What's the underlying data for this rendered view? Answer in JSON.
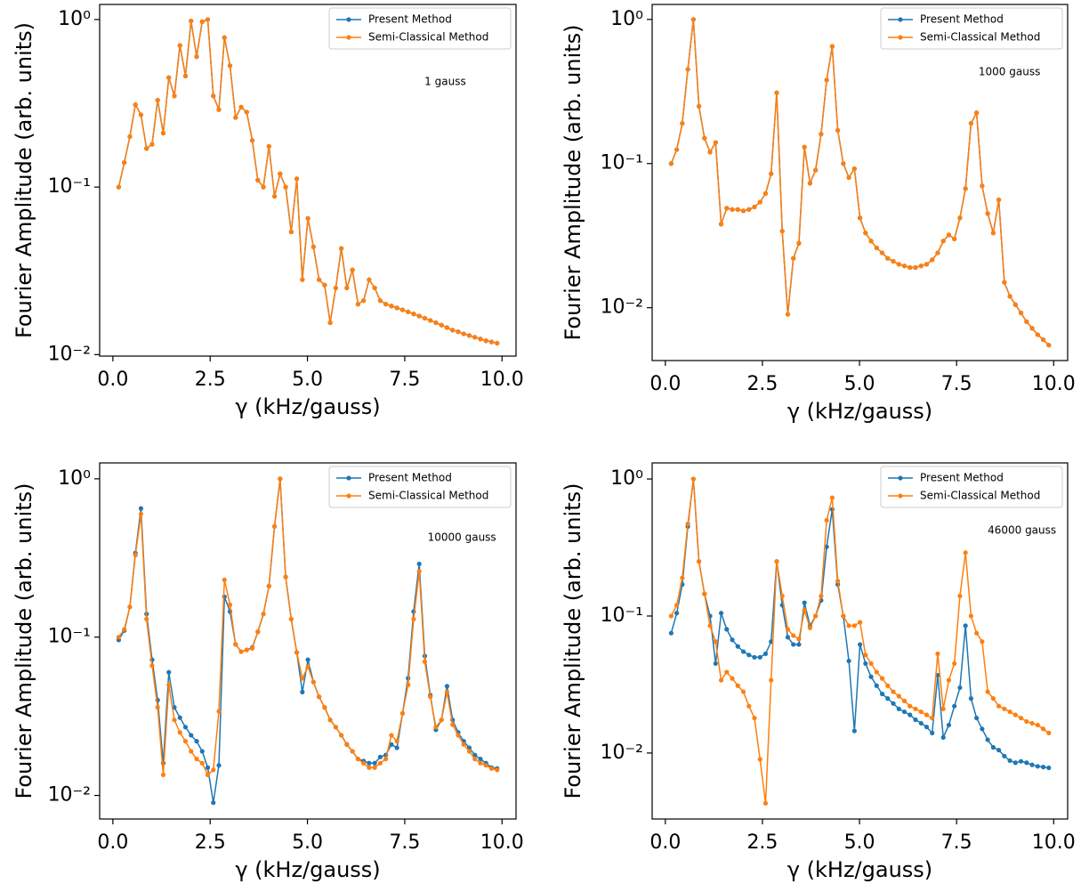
{
  "chart_data": [
    {
      "type": "line",
      "yscale": "log",
      "legend": "upper right",
      "annotation": "1 gauss",
      "xlabel": "γ (kHz/gauss)",
      "ylabel": "Fourier Amplitude (arb. units)",
      "xlim": [
        -0.34,
        10.36
      ],
      "ylim": [
        0.0098,
        1.23
      ],
      "xticks": [
        {
          "value": 0,
          "label": "0.0"
        },
        2.5,
        {
          "value": 5,
          "label": "5.0"
        },
        7.5,
        {
          "value": 10,
          "label": "10.0"
        }
      ],
      "yticks": [
        {
          "value": 0.01,
          "label": "10⁻²"
        },
        {
          "value": 0.1,
          "label": "10⁻¹"
        },
        {
          "value": 1,
          "label": "10⁰"
        }
      ],
      "x": [
        0.15,
        0.293,
        0.436,
        0.579,
        0.722,
        0.865,
        1.008,
        1.151,
        1.294,
        1.437,
        1.58,
        1.723,
        1.866,
        2.009,
        2.152,
        2.295,
        2.438,
        2.581,
        2.724,
        2.867,
        3.01,
        3.153,
        3.296,
        3.439,
        3.582,
        3.725,
        3.868,
        4.011,
        4.154,
        4.297,
        4.44,
        4.583,
        4.726,
        4.869,
        5.012,
        5.155,
        5.298,
        5.441,
        5.584,
        5.727,
        5.87,
        6.013,
        6.156,
        6.299,
        6.442,
        6.585,
        6.728,
        6.871,
        7.014,
        7.157,
        7.3,
        7.443,
        7.586,
        7.729,
        7.872,
        8.015,
        8.158,
        8.301,
        8.444,
        8.587,
        8.73,
        8.873,
        9.016,
        9.159,
        9.302,
        9.445,
        9.588,
        9.731,
        9.874
      ],
      "series": [
        {
          "name": "Present Method",
          "color": "#1f77b4",
          "values": [
            0.1,
            0.14,
            0.2,
            0.31,
            0.27,
            0.17,
            0.18,
            0.33,
            0.21,
            0.45,
            0.35,
            0.7,
            0.46,
            0.98,
            0.6,
            0.97,
            1.0,
            0.35,
            0.29,
            0.78,
            0.53,
            0.26,
            0.3,
            0.28,
            0.19,
            0.11,
            0.1,
            0.175,
            0.088,
            0.12,
            0.1,
            0.054,
            0.112,
            0.028,
            0.065,
            0.044,
            0.028,
            0.026,
            0.0155,
            0.025,
            0.043,
            0.025,
            0.032,
            0.02,
            0.021,
            0.028,
            0.025,
            0.021,
            0.02,
            0.0195,
            0.019,
            0.0185,
            0.018,
            0.0175,
            0.017,
            0.0165,
            0.016,
            0.0155,
            0.015,
            0.0145,
            0.014,
            0.0137,
            0.0133,
            0.013,
            0.0127,
            0.0124,
            0.0121,
            0.0119,
            0.0117
          ]
        },
        {
          "name": "Semi-Classical Method",
          "color": "#ff7f0e",
          "values": [
            0.1,
            0.14,
            0.2,
            0.31,
            0.27,
            0.17,
            0.18,
            0.33,
            0.21,
            0.45,
            0.35,
            0.7,
            0.46,
            0.98,
            0.6,
            0.97,
            1.0,
            0.35,
            0.29,
            0.78,
            0.53,
            0.26,
            0.3,
            0.28,
            0.19,
            0.11,
            0.1,
            0.175,
            0.088,
            0.12,
            0.1,
            0.054,
            0.112,
            0.028,
            0.065,
            0.044,
            0.028,
            0.026,
            0.0155,
            0.025,
            0.043,
            0.025,
            0.032,
            0.02,
            0.021,
            0.028,
            0.025,
            0.021,
            0.02,
            0.0195,
            0.019,
            0.0185,
            0.018,
            0.0175,
            0.017,
            0.0165,
            0.016,
            0.0155,
            0.015,
            0.0145,
            0.014,
            0.0137,
            0.0133,
            0.013,
            0.0127,
            0.0124,
            0.0121,
            0.0119,
            0.0117
          ]
        }
      ]
    },
    {
      "type": "line",
      "yscale": "log",
      "legend": "upper right",
      "annotation": "1000 gauss",
      "xlabel": "γ (kHz/gauss)",
      "ylabel": "Fourier Amplitude (arb. units)",
      "xlim": [
        -0.34,
        10.36
      ],
      "ylim": [
        0.0043,
        1.27
      ],
      "xticks": [
        {
          "value": 0,
          "label": "0.0"
        },
        2.5,
        {
          "value": 5,
          "label": "5.0"
        },
        7.5,
        {
          "value": 10,
          "label": "10.0"
        }
      ],
      "yticks": [
        {
          "value": 0.01,
          "label": "10⁻²"
        },
        {
          "value": 0.1,
          "label": "10⁻¹"
        },
        {
          "value": 1,
          "label": "10⁰"
        }
      ],
      "x": [
        0.15,
        0.293,
        0.436,
        0.579,
        0.722,
        0.865,
        1.008,
        1.151,
        1.294,
        1.437,
        1.58,
        1.723,
        1.866,
        2.009,
        2.152,
        2.295,
        2.438,
        2.581,
        2.724,
        2.867,
        3.01,
        3.153,
        3.296,
        3.439,
        3.582,
        3.725,
        3.868,
        4.011,
        4.154,
        4.297,
        4.44,
        4.583,
        4.726,
        4.869,
        5.012,
        5.155,
        5.298,
        5.441,
        5.584,
        5.727,
        5.87,
        6.013,
        6.156,
        6.299,
        6.442,
        6.585,
        6.728,
        6.871,
        7.014,
        7.157,
        7.3,
        7.443,
        7.586,
        7.729,
        7.872,
        8.015,
        8.158,
        8.301,
        8.444,
        8.587,
        8.73,
        8.873,
        9.016,
        9.159,
        9.302,
        9.445,
        9.588,
        9.731,
        9.874
      ],
      "series": [
        {
          "name": "Present Method",
          "color": "#1f77b4",
          "values": [
            0.1,
            0.125,
            0.19,
            0.45,
            1.0,
            0.25,
            0.15,
            0.12,
            0.14,
            0.038,
            0.049,
            0.048,
            0.048,
            0.047,
            0.048,
            0.05,
            0.054,
            0.062,
            0.085,
            0.31,
            0.034,
            0.009,
            0.022,
            0.028,
            0.13,
            0.073,
            0.09,
            0.16,
            0.38,
            0.65,
            0.17,
            0.1,
            0.08,
            0.092,
            0.042,
            0.033,
            0.029,
            0.026,
            0.024,
            0.022,
            0.021,
            0.02,
            0.0195,
            0.019,
            0.019,
            0.0195,
            0.02,
            0.0215,
            0.024,
            0.029,
            0.032,
            0.03,
            0.042,
            0.067,
            0.19,
            0.225,
            0.07,
            0.045,
            0.033,
            0.056,
            0.015,
            0.012,
            0.0105,
            0.0092,
            0.008,
            0.0072,
            0.0065,
            0.006,
            0.0055
          ]
        },
        {
          "name": "Semi-Classical Method",
          "color": "#ff7f0e",
          "values": [
            0.1,
            0.125,
            0.19,
            0.45,
            1.0,
            0.25,
            0.15,
            0.12,
            0.14,
            0.038,
            0.049,
            0.048,
            0.048,
            0.047,
            0.048,
            0.05,
            0.054,
            0.062,
            0.085,
            0.31,
            0.034,
            0.009,
            0.022,
            0.028,
            0.13,
            0.073,
            0.09,
            0.16,
            0.38,
            0.65,
            0.17,
            0.1,
            0.08,
            0.092,
            0.042,
            0.033,
            0.029,
            0.026,
            0.024,
            0.022,
            0.021,
            0.02,
            0.0195,
            0.019,
            0.019,
            0.0195,
            0.02,
            0.0215,
            0.024,
            0.029,
            0.032,
            0.03,
            0.042,
            0.067,
            0.19,
            0.225,
            0.07,
            0.045,
            0.033,
            0.056,
            0.015,
            0.012,
            0.0105,
            0.0092,
            0.008,
            0.0072,
            0.0065,
            0.006,
            0.0055
          ]
        }
      ]
    },
    {
      "type": "line",
      "yscale": "log",
      "legend": "upper right",
      "annotation": "10000 gauss",
      "xlabel": "γ (kHz/gauss)",
      "ylabel": "Fourier Amplitude (arb. units)",
      "xlim": [
        -0.34,
        10.36
      ],
      "ylim": [
        0.0071,
        1.26
      ],
      "xticks": [
        {
          "value": 0,
          "label": "0.0"
        },
        2.5,
        {
          "value": 5,
          "label": "5.0"
        },
        7.5,
        {
          "value": 10,
          "label": "10.0"
        }
      ],
      "yticks": [
        {
          "value": 0.01,
          "label": "10⁻²"
        },
        {
          "value": 0.1,
          "label": "10⁻¹"
        },
        {
          "value": 1,
          "label": "10⁰"
        }
      ],
      "x": [
        0.15,
        0.293,
        0.436,
        0.579,
        0.722,
        0.865,
        1.008,
        1.151,
        1.294,
        1.437,
        1.58,
        1.723,
        1.866,
        2.009,
        2.152,
        2.295,
        2.438,
        2.581,
        2.724,
        2.867,
        3.01,
        3.153,
        3.296,
        3.439,
        3.582,
        3.725,
        3.868,
        4.011,
        4.154,
        4.297,
        4.44,
        4.583,
        4.726,
        4.869,
        5.012,
        5.155,
        5.298,
        5.441,
        5.584,
        5.727,
        5.87,
        6.013,
        6.156,
        6.299,
        6.442,
        6.585,
        6.728,
        6.871,
        7.014,
        7.157,
        7.3,
        7.443,
        7.586,
        7.729,
        7.872,
        8.015,
        8.158,
        8.301,
        8.444,
        8.587,
        8.73,
        8.873,
        9.016,
        9.159,
        9.302,
        9.445,
        9.588,
        9.731,
        9.874
      ],
      "series": [
        {
          "name": "Present Method",
          "color": "#1f77b4",
          "values": [
            0.096,
            0.11,
            0.155,
            0.34,
            0.65,
            0.14,
            0.072,
            0.04,
            0.016,
            0.06,
            0.036,
            0.031,
            0.027,
            0.024,
            0.022,
            0.019,
            0.015,
            0.009,
            0.0155,
            0.18,
            0.145,
            0.09,
            0.081,
            0.083,
            0.086,
            0.108,
            0.14,
            0.21,
            0.5,
            1.0,
            0.24,
            0.13,
            0.08,
            0.045,
            0.072,
            0.052,
            0.042,
            0.036,
            0.03,
            0.027,
            0.024,
            0.021,
            0.019,
            0.017,
            0.0165,
            0.016,
            0.016,
            0.0175,
            0.018,
            0.021,
            0.02,
            0.033,
            0.055,
            0.145,
            0.29,
            0.076,
            0.043,
            0.026,
            0.03,
            0.049,
            0.03,
            0.025,
            0.022,
            0.02,
            0.018,
            0.017,
            0.016,
            0.015,
            0.0148
          ]
        },
        {
          "name": "Semi-Classical Method",
          "color": "#ff7f0e",
          "values": [
            0.1,
            0.112,
            0.155,
            0.33,
            0.6,
            0.13,
            0.066,
            0.036,
            0.0135,
            0.05,
            0.03,
            0.025,
            0.022,
            0.019,
            0.017,
            0.016,
            0.0135,
            0.0145,
            0.034,
            0.23,
            0.16,
            0.09,
            0.081,
            0.083,
            0.085,
            0.108,
            0.14,
            0.21,
            0.5,
            1.0,
            0.24,
            0.13,
            0.08,
            0.055,
            0.065,
            0.052,
            0.042,
            0.036,
            0.03,
            0.027,
            0.024,
            0.021,
            0.019,
            0.017,
            0.016,
            0.015,
            0.015,
            0.016,
            0.017,
            0.024,
            0.022,
            0.033,
            0.05,
            0.13,
            0.26,
            0.07,
            0.042,
            0.027,
            0.03,
            0.045,
            0.028,
            0.024,
            0.021,
            0.019,
            0.017,
            0.016,
            0.0155,
            0.0148,
            0.0145
          ]
        }
      ]
    },
    {
      "type": "line",
      "yscale": "log",
      "legend": "upper right",
      "annotation": "46000 gauss",
      "xlabel": "γ (kHz/gauss)",
      "ylabel": "Fourier Amplitude (arb. units)",
      "xlim": [
        -0.34,
        10.36
      ],
      "ylim": [
        0.0033,
        1.31
      ],
      "xticks": [
        {
          "value": 0,
          "label": "0.0"
        },
        2.5,
        {
          "value": 5,
          "label": "5.0"
        },
        7.5,
        {
          "value": 10,
          "label": "10.0"
        }
      ],
      "yticks": [
        {
          "value": 0.01,
          "label": "10⁻²"
        },
        {
          "value": 0.1,
          "label": "10⁻¹"
        },
        {
          "value": 1,
          "label": "10⁰"
        }
      ],
      "x": [
        0.15,
        0.293,
        0.436,
        0.579,
        0.722,
        0.865,
        1.008,
        1.151,
        1.294,
        1.437,
        1.58,
        1.723,
        1.866,
        2.009,
        2.152,
        2.295,
        2.438,
        2.581,
        2.724,
        2.867,
        3.01,
        3.153,
        3.296,
        3.439,
        3.582,
        3.725,
        3.868,
        4.011,
        4.154,
        4.297,
        4.44,
        4.583,
        4.726,
        4.869,
        5.012,
        5.155,
        5.298,
        5.441,
        5.584,
        5.727,
        5.87,
        6.013,
        6.156,
        6.299,
        6.442,
        6.585,
        6.728,
        6.871,
        7.014,
        7.157,
        7.3,
        7.443,
        7.586,
        7.729,
        7.872,
        8.015,
        8.158,
        8.301,
        8.444,
        8.587,
        8.73,
        8.873,
        9.016,
        9.159,
        9.302,
        9.445,
        9.588,
        9.731,
        9.874
      ],
      "series": [
        {
          "name": "Present Method",
          "color": "#1f77b4",
          "values": [
            0.075,
            0.105,
            0.17,
            0.45,
            1.0,
            0.25,
            0.145,
            0.1,
            0.045,
            0.105,
            0.08,
            0.067,
            0.06,
            0.055,
            0.052,
            0.05,
            0.05,
            0.053,
            0.065,
            0.25,
            0.12,
            0.07,
            0.062,
            0.062,
            0.125,
            0.085,
            0.1,
            0.13,
            0.32,
            0.6,
            0.17,
            0.1,
            0.047,
            0.0145,
            0.062,
            0.045,
            0.036,
            0.031,
            0.027,
            0.025,
            0.023,
            0.021,
            0.02,
            0.019,
            0.0175,
            0.0165,
            0.0155,
            0.014,
            0.037,
            0.013,
            0.016,
            0.022,
            0.03,
            0.085,
            0.025,
            0.018,
            0.015,
            0.0125,
            0.011,
            0.0105,
            0.0095,
            0.0088,
            0.0085,
            0.0087,
            0.0085,
            0.0082,
            0.008,
            0.0079,
            0.0078
          ]
        },
        {
          "name": "Semi-Classical Method",
          "color": "#ff7f0e",
          "values": [
            0.1,
            0.12,
            0.19,
            0.47,
            1.0,
            0.25,
            0.145,
            0.085,
            0.065,
            0.034,
            0.039,
            0.035,
            0.031,
            0.028,
            0.022,
            0.018,
            0.009,
            0.0043,
            0.034,
            0.25,
            0.14,
            0.08,
            0.072,
            0.068,
            0.11,
            0.082,
            0.1,
            0.14,
            0.5,
            0.73,
            0.18,
            0.1,
            0.085,
            0.085,
            0.09,
            0.052,
            0.045,
            0.039,
            0.035,
            0.031,
            0.028,
            0.026,
            0.024,
            0.022,
            0.021,
            0.02,
            0.019,
            0.018,
            0.053,
            0.021,
            0.034,
            0.045,
            0.14,
            0.29,
            0.1,
            0.075,
            0.065,
            0.028,
            0.025,
            0.022,
            0.021,
            0.02,
            0.019,
            0.018,
            0.017,
            0.0165,
            0.016,
            0.015,
            0.014
          ]
        }
      ]
    }
  ]
}
